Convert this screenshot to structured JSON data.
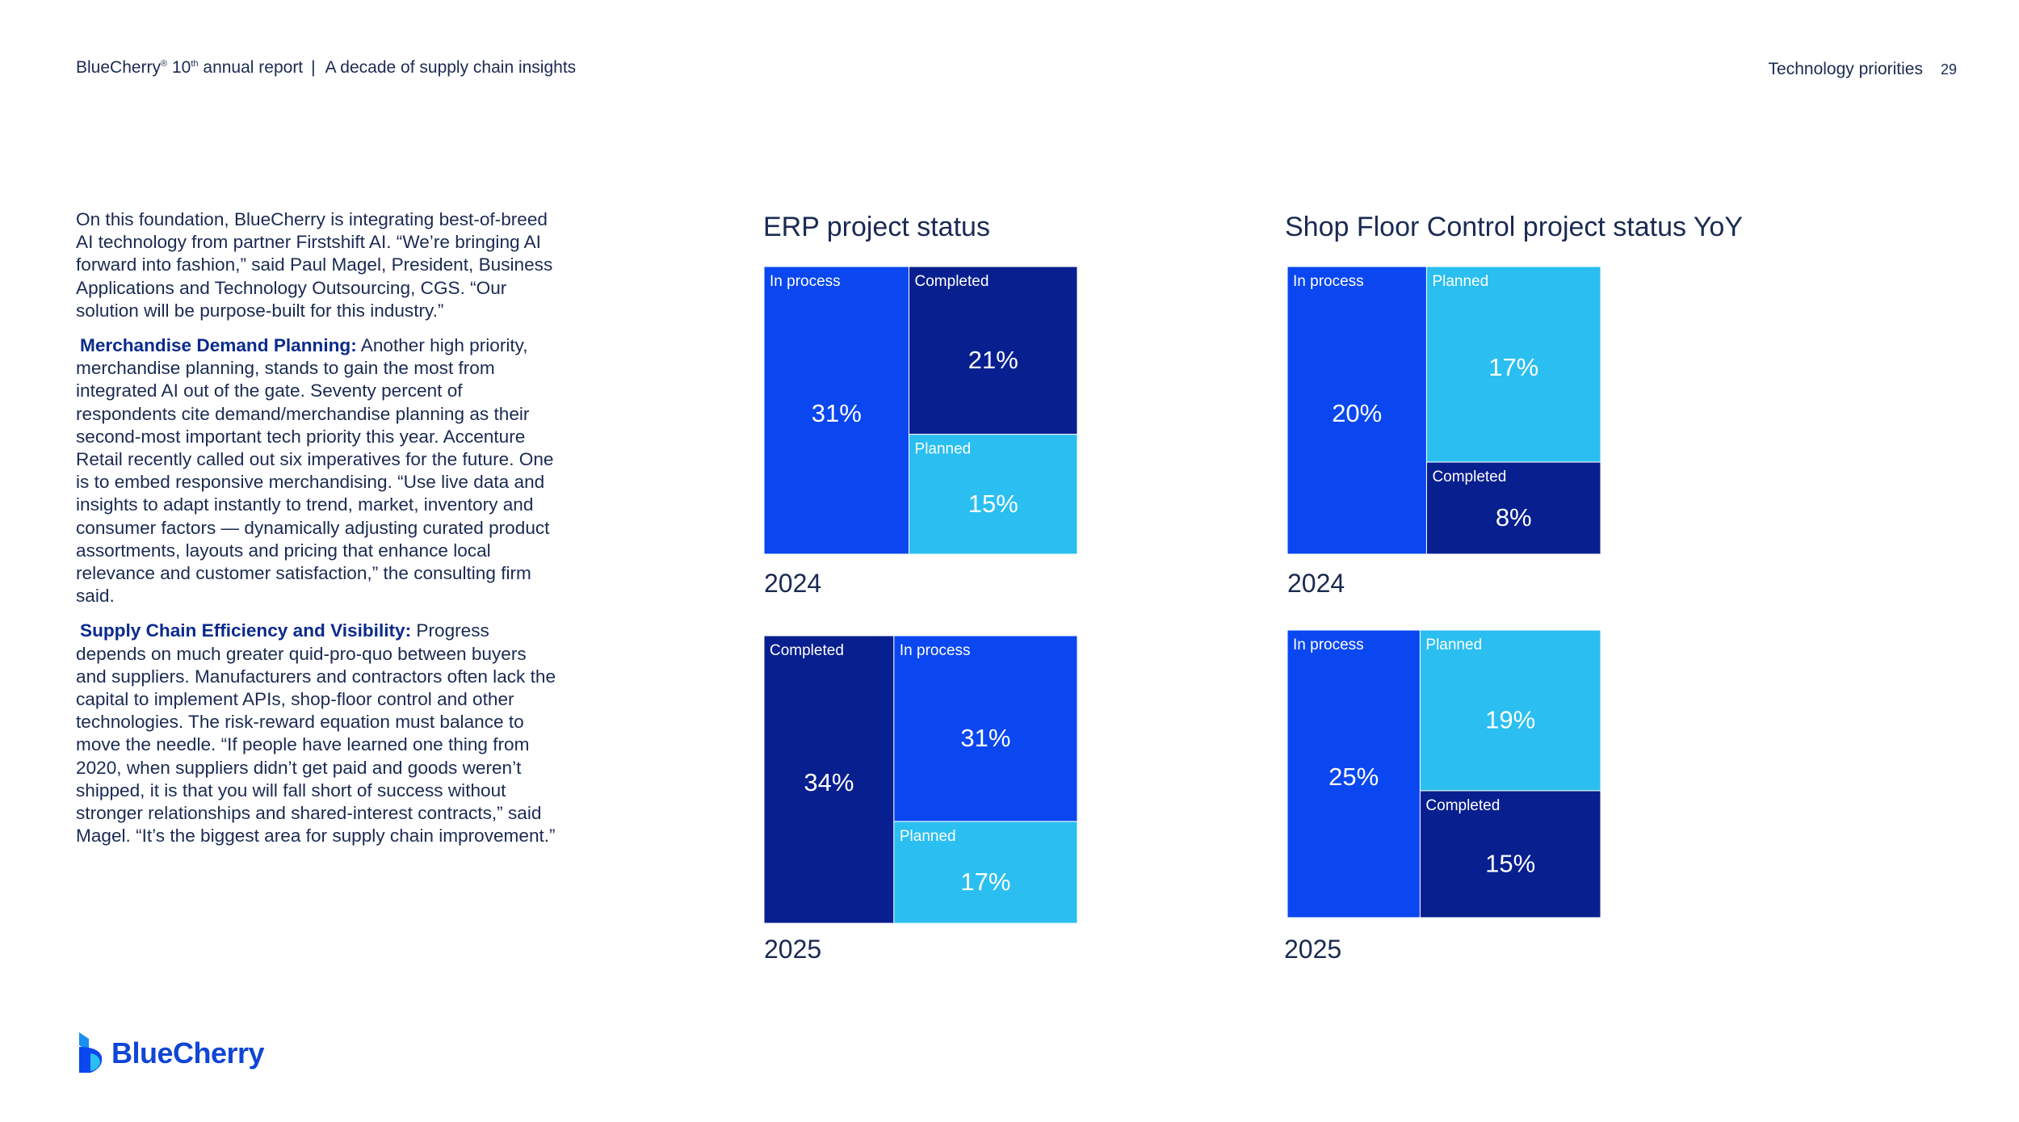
{
  "header": {
    "brand": "BlueCherry",
    "reg_mark": "®",
    "edition_num": "10",
    "edition_suffix": "th",
    "edition_rest": "annual report",
    "subtitle": "A decade of supply chain insights",
    "section": "Technology priorities",
    "page_number": "29"
  },
  "body": {
    "p1": "On this foundation, BlueCherry is integrating best-of-breed AI technology from partner Firstshift AI. “We’re bringing AI forward into fashion,” said Paul Magel, President, Business Applications and Technology Outsourcing, CGS. “Our solution will be purpose-built for this industry.”",
    "p2_heading": "Merchandise Demand Planning:",
    "p2": "Another high priority, merchandise planning, stands to gain the most from integrated AI out of the gate. Seventy percent of respondents cite demand/merchandise planning as their second-most important tech priority this year. Accenture Retail recently called out six imperatives for the future. One is to embed responsive merchandising. “Use live data and insights to adapt instantly to trend, market, inventory and consumer factors — dynamically adjusting curated product assortments, layouts and pricing that enhance local relevance and customer satisfaction,” the consulting firm said.",
    "p3_heading": "Supply Chain Efficiency and Visibility:",
    "p3": "Progress depends on much greater quid-pro-quo between buyers and suppliers. Manufacturers and contractors often lack the capital to implement APIs, shop-floor control and other technologies. The risk-reward equation must balance to move the needle. “If people have learned one thing from 2020, when suppliers didn’t get paid and goods weren’t shipped, it is that you will fall short of success without stronger relationships and shared-interest contracts,” said Magel. “It’s the biggest area for supply chain improvement.”"
  },
  "colors": {
    "in_process": "#0a47f0",
    "completed": "#081f8f",
    "planned": "#2abff0",
    "text_dark": "#1a2a52",
    "logo": "#1046d6"
  },
  "chart_titles": {
    "erp": "ERP project status",
    "sfc": "Shop Floor Control project status YoY"
  },
  "chart_data": [
    {
      "type": "treemap",
      "title": "ERP project status",
      "year": "2024",
      "cells": [
        {
          "label": "In process",
          "value": 31,
          "display": "31%",
          "color": "#0a47f0"
        },
        {
          "label": "Completed",
          "value": 21,
          "display": "21%",
          "color": "#081f8f"
        },
        {
          "label": "Planned",
          "value": 15,
          "display": "15%",
          "color": "#2abff0"
        }
      ]
    },
    {
      "type": "treemap",
      "title": "ERP project status",
      "year": "2025",
      "cells": [
        {
          "label": "Completed",
          "value": 34,
          "display": "34%",
          "color": "#081f8f"
        },
        {
          "label": "In process",
          "value": 31,
          "display": "31%",
          "color": "#0a47f0"
        },
        {
          "label": "Planned",
          "value": 17,
          "display": "17%",
          "color": "#2abff0"
        }
      ]
    },
    {
      "type": "treemap",
      "title": "Shop Floor Control project status YoY",
      "year": "2024",
      "cells": [
        {
          "label": "In process",
          "value": 20,
          "display": "20%",
          "color": "#0a47f0"
        },
        {
          "label": "Planned",
          "value": 17,
          "display": "17%",
          "color": "#2abff0"
        },
        {
          "label": "Completed",
          "value": 8,
          "display": "8%",
          "color": "#081f8f"
        }
      ]
    },
    {
      "type": "treemap",
      "title": "Shop Floor Control project status YoY",
      "year": "2025",
      "cells": [
        {
          "label": "In process",
          "value": 25,
          "display": "25%",
          "color": "#0a47f0"
        },
        {
          "label": "Planned",
          "value": 19,
          "display": "19%",
          "color": "#2abff0"
        },
        {
          "label": "Completed",
          "value": 15,
          "display": "15%",
          "color": "#081f8f"
        }
      ]
    }
  ],
  "logo": {
    "text": "BlueCherry"
  }
}
